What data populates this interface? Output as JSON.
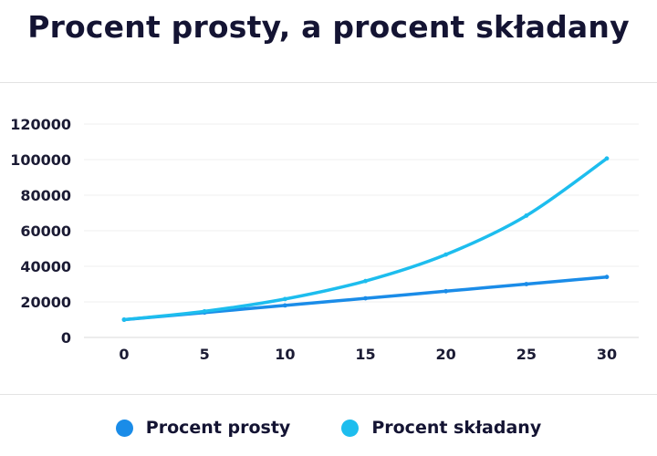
{
  "chart_data": {
    "type": "line",
    "title": "Procent prosty, a procent składany",
    "xlabel": "",
    "ylabel": "",
    "x": [
      0,
      5,
      10,
      15,
      20,
      25,
      30
    ],
    "xlim": [
      0,
      30
    ],
    "ylim": [
      0,
      120000
    ],
    "yticks": [
      0,
      20000,
      40000,
      60000,
      80000,
      100000,
      120000
    ],
    "xticks": [
      0,
      5,
      10,
      15,
      20,
      25,
      30
    ],
    "grid": true,
    "legend_position": "bottom",
    "series": [
      {
        "name": "Procent prosty",
        "color": "#1a8ce8",
        "values": [
          10000,
          14000,
          18000,
          22000,
          26000,
          30000,
          34000
        ]
      },
      {
        "name": "Procent składany",
        "color": "#1dbdee",
        "values": [
          10000,
          14693,
          21589,
          31722,
          46610,
          68485,
          100627
        ]
      }
    ]
  }
}
